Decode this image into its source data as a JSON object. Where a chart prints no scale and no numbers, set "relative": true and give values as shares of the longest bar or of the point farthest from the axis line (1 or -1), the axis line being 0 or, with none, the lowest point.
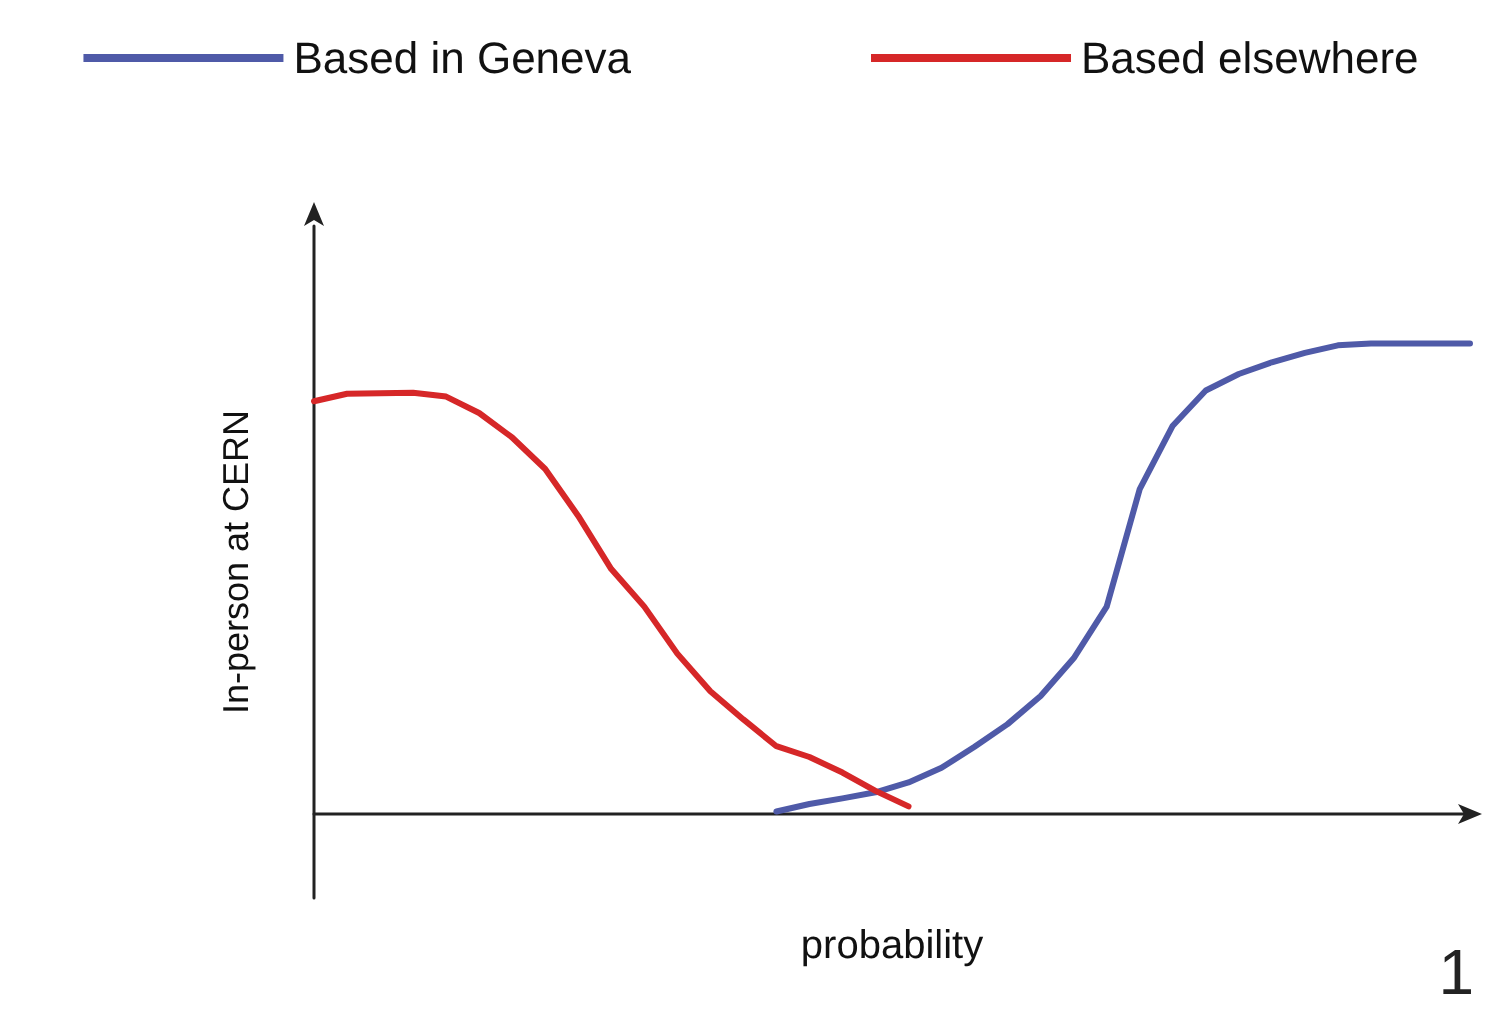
{
  "chart_data": {
    "type": "line",
    "relative": true,
    "xlabel": "probability",
    "ylabel": "In-person at CERN",
    "annotations": [
      "1"
    ],
    "legend": "top",
    "marker": "none",
    "line_style": "solid",
    "grid": false,
    "categories": [
      null,
      null,
      null,
      null,
      null,
      null,
      null,
      null,
      null,
      null,
      null,
      null,
      null,
      null,
      null,
      null,
      null,
      null,
      null,
      null,
      null,
      null,
      null,
      null,
      null,
      null,
      null,
      null,
      null,
      null,
      null,
      null,
      null,
      null,
      null,
      null
    ],
    "series": [
      {
        "name": "Based in Geneva",
        "color": "#4f5aa8",
        "values": [
          null,
          null,
          null,
          null,
          null,
          null,
          null,
          null,
          null,
          null,
          null,
          null,
          null,
          null,
          0.004,
          0.02,
          0.032,
          0.045,
          0.066,
          0.097,
          0.142,
          0.19,
          0.25,
          0.33,
          0.44,
          0.69,
          0.825,
          0.9,
          0.935,
          0.96,
          0.98,
          0.996,
          1,
          1,
          1,
          1
        ]
      },
      {
        "name": "Based elsewhere",
        "color": "#d62728",
        "values": [
          0.877,
          0.893,
          0.894,
          0.895,
          0.887,
          0.852,
          0.8,
          0.733,
          0.633,
          0.52,
          0.44,
          0.34,
          0.26,
          0.2,
          0.143,
          0.12,
          0.087,
          0.048,
          0.015,
          null,
          null,
          null,
          null,
          null,
          null,
          null,
          null,
          null,
          null,
          null,
          null,
          null,
          null,
          null,
          null,
          null
        ]
      }
    ]
  }
}
